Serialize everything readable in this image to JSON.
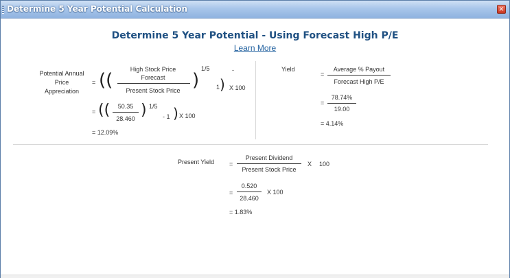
{
  "window": {
    "title": "Determine 5 Year Potential Calculation",
    "close_icon": "close-icon"
  },
  "heading": "Determine 5 Year Potential - Using Forecast High P/E",
  "learn_more": "Learn More",
  "appreciation": {
    "label_lines": [
      "Potential Annual",
      "Price",
      "Appreciation"
    ],
    "eq": "=",
    "num_line1": "High Stock Price",
    "num_line2": "Forecast",
    "den": "Present Stock Price",
    "exp": "1/5",
    "minus_one": "-",
    "one": "1",
    "times100": "X 100",
    "step2": {
      "eq": "=",
      "num": "50.35",
      "den": "28.460",
      "exp": "1/5",
      "minus_one": "- 1",
      "times100": "X 100"
    },
    "result": "= 12.09%"
  },
  "yield": {
    "label": "Yield",
    "eq": "=",
    "num": "Average % Payout",
    "den": "Forecast High P/E",
    "step2": {
      "eq": "=",
      "num": "78.74%",
      "den": "19.00"
    },
    "result": "= 4.14%"
  },
  "present_yield": {
    "label": "Present Yield",
    "eq": "=",
    "num": "Present Dividend",
    "den": "Present Stock Price",
    "times": "X",
    "hundred": "100",
    "step2": {
      "eq": "=",
      "num": "0.520",
      "den": "28.460",
      "times100": "X  100"
    },
    "result": "= 1.83%"
  },
  "colors": {
    "title_bar": "#a9c6ea",
    "heading": "#1f5082",
    "link": "#1f5f9e"
  }
}
